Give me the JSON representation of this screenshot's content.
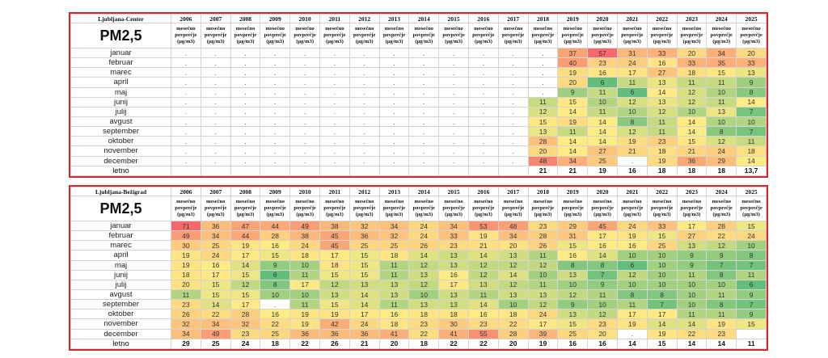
{
  "chart_data": [
    {
      "type": "table",
      "station": "Ljubljana-Center",
      "title": "PM2,5",
      "years": [
        "2006",
        "2007",
        "2008",
        "2009",
        "2010",
        "2011",
        "2012",
        "2013",
        "2014",
        "2015",
        "2016",
        "2017",
        "2018",
        "2019",
        "2020",
        "2021",
        "2022",
        "2023",
        "2024",
        "2025"
      ],
      "subheader": [
        "mesečno",
        "povprečje",
        "(µg/m3)"
      ],
      "rows": [
        {
          "month": "januar",
          "values": [
            ".",
            ".",
            ".",
            ".",
            ".",
            ".",
            ".",
            ".",
            ".",
            ".",
            ".",
            ".",
            ".",
            "37",
            "57",
            "31",
            "33",
            "20",
            "34",
            "20"
          ]
        },
        {
          "month": "februar",
          "values": [
            ".",
            ".",
            ".",
            ".",
            ".",
            ".",
            ".",
            ".",
            ".",
            ".",
            ".",
            ".",
            ".",
            "40",
            "23",
            "24",
            "16",
            "33",
            "35",
            "33"
          ]
        },
        {
          "month": "marec",
          "values": [
            ".",
            ".",
            ".",
            ".",
            ".",
            ".",
            ".",
            ".",
            ".",
            ".",
            ".",
            ".",
            ".",
            "19",
            "16",
            "17",
            "27",
            "18",
            "15",
            "13"
          ]
        },
        {
          "month": "april",
          "values": [
            ".",
            ".",
            ".",
            ".",
            ".",
            ".",
            ".",
            ".",
            ".",
            ".",
            ".",
            ".",
            ".",
            "20",
            "6",
            "11",
            "13",
            "11",
            "11",
            "9"
          ]
        },
        {
          "month": "maj",
          "values": [
            ".",
            ".",
            ".",
            ".",
            ".",
            ".",
            ".",
            ".",
            ".",
            ".",
            ".",
            ".",
            ".",
            "9",
            "11",
            "6",
            "14",
            "12",
            "10",
            "8"
          ]
        },
        {
          "month": "junij",
          "values": [
            ".",
            ".",
            ".",
            ".",
            ".",
            ".",
            ".",
            ".",
            ".",
            ".",
            ".",
            ".",
            "11",
            "15",
            "10",
            "12",
            "13",
            "12",
            "11",
            "14"
          ]
        },
        {
          "month": "julij",
          "values": [
            ".",
            ".",
            ".",
            ".",
            ".",
            ".",
            ".",
            ".",
            ".",
            ".",
            ".",
            ".",
            "12",
            "14",
            "11",
            "10",
            "12",
            "10",
            "13",
            "7"
          ]
        },
        {
          "month": "avgust",
          "values": [
            ".",
            ".",
            ".",
            ".",
            ".",
            ".",
            ".",
            ".",
            ".",
            ".",
            ".",
            ".",
            "15",
            "19",
            "14",
            "8",
            "11",
            "14",
            "10",
            "10"
          ]
        },
        {
          "month": "september",
          "values": [
            ".",
            ".",
            ".",
            ".",
            ".",
            ".",
            ".",
            ".",
            ".",
            ".",
            ".",
            ".",
            "13",
            "11",
            "14",
            "12",
            "11",
            "14",
            "8",
            "7"
          ]
        },
        {
          "month": "oktober",
          "values": [
            ".",
            ".",
            ".",
            ".",
            ".",
            ".",
            ".",
            ".",
            ".",
            ".",
            ".",
            ".",
            "28",
            "14",
            "14",
            "19",
            "23",
            "15",
            "12",
            "11"
          ]
        },
        {
          "month": "november",
          "values": [
            ".",
            ".",
            ".",
            ".",
            ".",
            ".",
            ".",
            ".",
            ".",
            ".",
            ".",
            ".",
            "20",
            "14",
            "27",
            "21",
            "18",
            "21",
            "24",
            "18"
          ]
        },
        {
          "month": "december",
          "values": [
            ".",
            ".",
            ".",
            ".",
            ".",
            ".",
            ".",
            ".",
            ".",
            ".",
            ".",
            ".",
            "48",
            "34",
            "25",
            ".",
            "19",
            "36",
            "29",
            "14"
          ]
        }
      ],
      "total": {
        "label": "letno",
        "values": [
          "",
          "",
          "",
          "",
          "",
          "",
          "",
          "",
          "",
          "",
          "",
          "",
          "21",
          "21",
          "19",
          "16",
          "18",
          "18",
          "18",
          "13,7"
        ]
      }
    },
    {
      "type": "table",
      "station": "Ljubljana-Bežigrad",
      "title": "PM2,5",
      "years": [
        "2006",
        "2007",
        "2008",
        "2009",
        "2010",
        "2011",
        "2012",
        "2013",
        "2014",
        "2015",
        "2016",
        "2017",
        "2018",
        "2019",
        "2020",
        "2021",
        "2022",
        "2023",
        "2024",
        "2025"
      ],
      "subheader": [
        "mesečno",
        "povprečje",
        "(µg/m3)"
      ],
      "rows": [
        {
          "month": "januar",
          "values": [
            "71",
            "36",
            "47",
            "44",
            "49",
            "38",
            "32",
            "34",
            "24",
            "34",
            "53",
            "48",
            "23",
            "29",
            "45",
            "24",
            "33",
            "17",
            "28",
            "15"
          ]
        },
        {
          "month": "februar",
          "values": [
            "49",
            "34",
            "44",
            "28",
            "38",
            "45",
            "36",
            "32",
            "24",
            "33",
            "19",
            "34",
            "28",
            "31",
            "17",
            "19",
            "15",
            "27",
            "22",
            "24"
          ]
        },
        {
          "month": "marec",
          "values": [
            "30",
            "25",
            "19",
            "16",
            "24",
            "45",
            "25",
            "25",
            "26",
            "23",
            "21",
            "20",
            "26",
            "15",
            "16",
            "16",
            "25",
            "13",
            "12",
            "10"
          ]
        },
        {
          "month": "april",
          "values": [
            "19",
            "24",
            "17",
            "15",
            "18",
            "17",
            "15",
            "18",
            "14",
            "13",
            "14",
            "13",
            "11",
            "16",
            "14",
            "10",
            "10",
            "9",
            "9",
            "8"
          ]
        },
        {
          "month": "maj",
          "values": [
            "19",
            "16",
            "14",
            "9",
            "10",
            "18",
            "15",
            "11",
            "12",
            "13",
            "12",
            "12",
            "12",
            "8",
            "8",
            "6",
            "10",
            "9",
            "7",
            "7"
          ]
        },
        {
          "month": "junij",
          "values": [
            "18",
            "17",
            "15",
            "6",
            "11",
            "15",
            "15",
            "11",
            "13",
            "16",
            "12",
            "14",
            "10",
            "13",
            "7",
            "12",
            "10",
            "11",
            "8",
            "11"
          ]
        },
        {
          "month": "julij",
          "values": [
            "20",
            "15",
            "12",
            "8",
            "17",
            "12",
            "13",
            "13",
            "12",
            "17",
            "13",
            "12",
            "11",
            "10",
            "9",
            "10",
            "10",
            "10",
            "10",
            "6"
          ]
        },
        {
          "month": "avgust",
          "values": [
            "11",
            "15",
            "15",
            "10",
            "10",
            "13",
            "14",
            "13",
            "10",
            "13",
            "11",
            "13",
            "13",
            "12",
            "11",
            "8",
            "8",
            "10",
            "11",
            "9"
          ]
        },
        {
          "month": "september",
          "values": [
            "23",
            "14",
            "17",
            ".",
            "11",
            "15",
            "14",
            "11",
            "13",
            "13",
            "14",
            "10",
            "12",
            "9",
            "10",
            "11",
            "7",
            "10",
            "8",
            "7"
          ]
        },
        {
          "month": "oktober",
          "values": [
            "26",
            "22",
            "28",
            "16",
            "19",
            "19",
            "17",
            "16",
            "18",
            "18",
            "16",
            "18",
            "24",
            "13",
            "12",
            "17",
            "17",
            "11",
            "11",
            "9"
          ]
        },
        {
          "month": "november",
          "values": [
            "32",
            "34",
            "32",
            "22",
            "19",
            "42",
            "24",
            "18",
            "23",
            "30",
            "23",
            "22",
            "17",
            "15",
            "23",
            "19",
            "14",
            "14",
            "19",
            "15"
          ]
        },
        {
          "month": "december",
          "values": [
            "34",
            "49",
            "23",
            "25",
            "36",
            "36",
            "36",
            "41",
            "22",
            "41",
            "55",
            "28",
            "39",
            "25",
            "20",
            ".",
            "19",
            "22",
            "23",
            ""
          ]
        }
      ],
      "total": {
        "label": "letno",
        "values": [
          "29",
          "25",
          "24",
          "18",
          "22",
          "26",
          "21",
          "20",
          "18",
          "22",
          "22",
          "20",
          "19",
          "16",
          "16",
          "14",
          "15",
          "14",
          "14",
          "11"
        ]
      }
    }
  ],
  "colors": {
    "low": "#63BE7B",
    "mid": "#FFEB84",
    "high": "#F8696B",
    "border": "#d9262b"
  }
}
